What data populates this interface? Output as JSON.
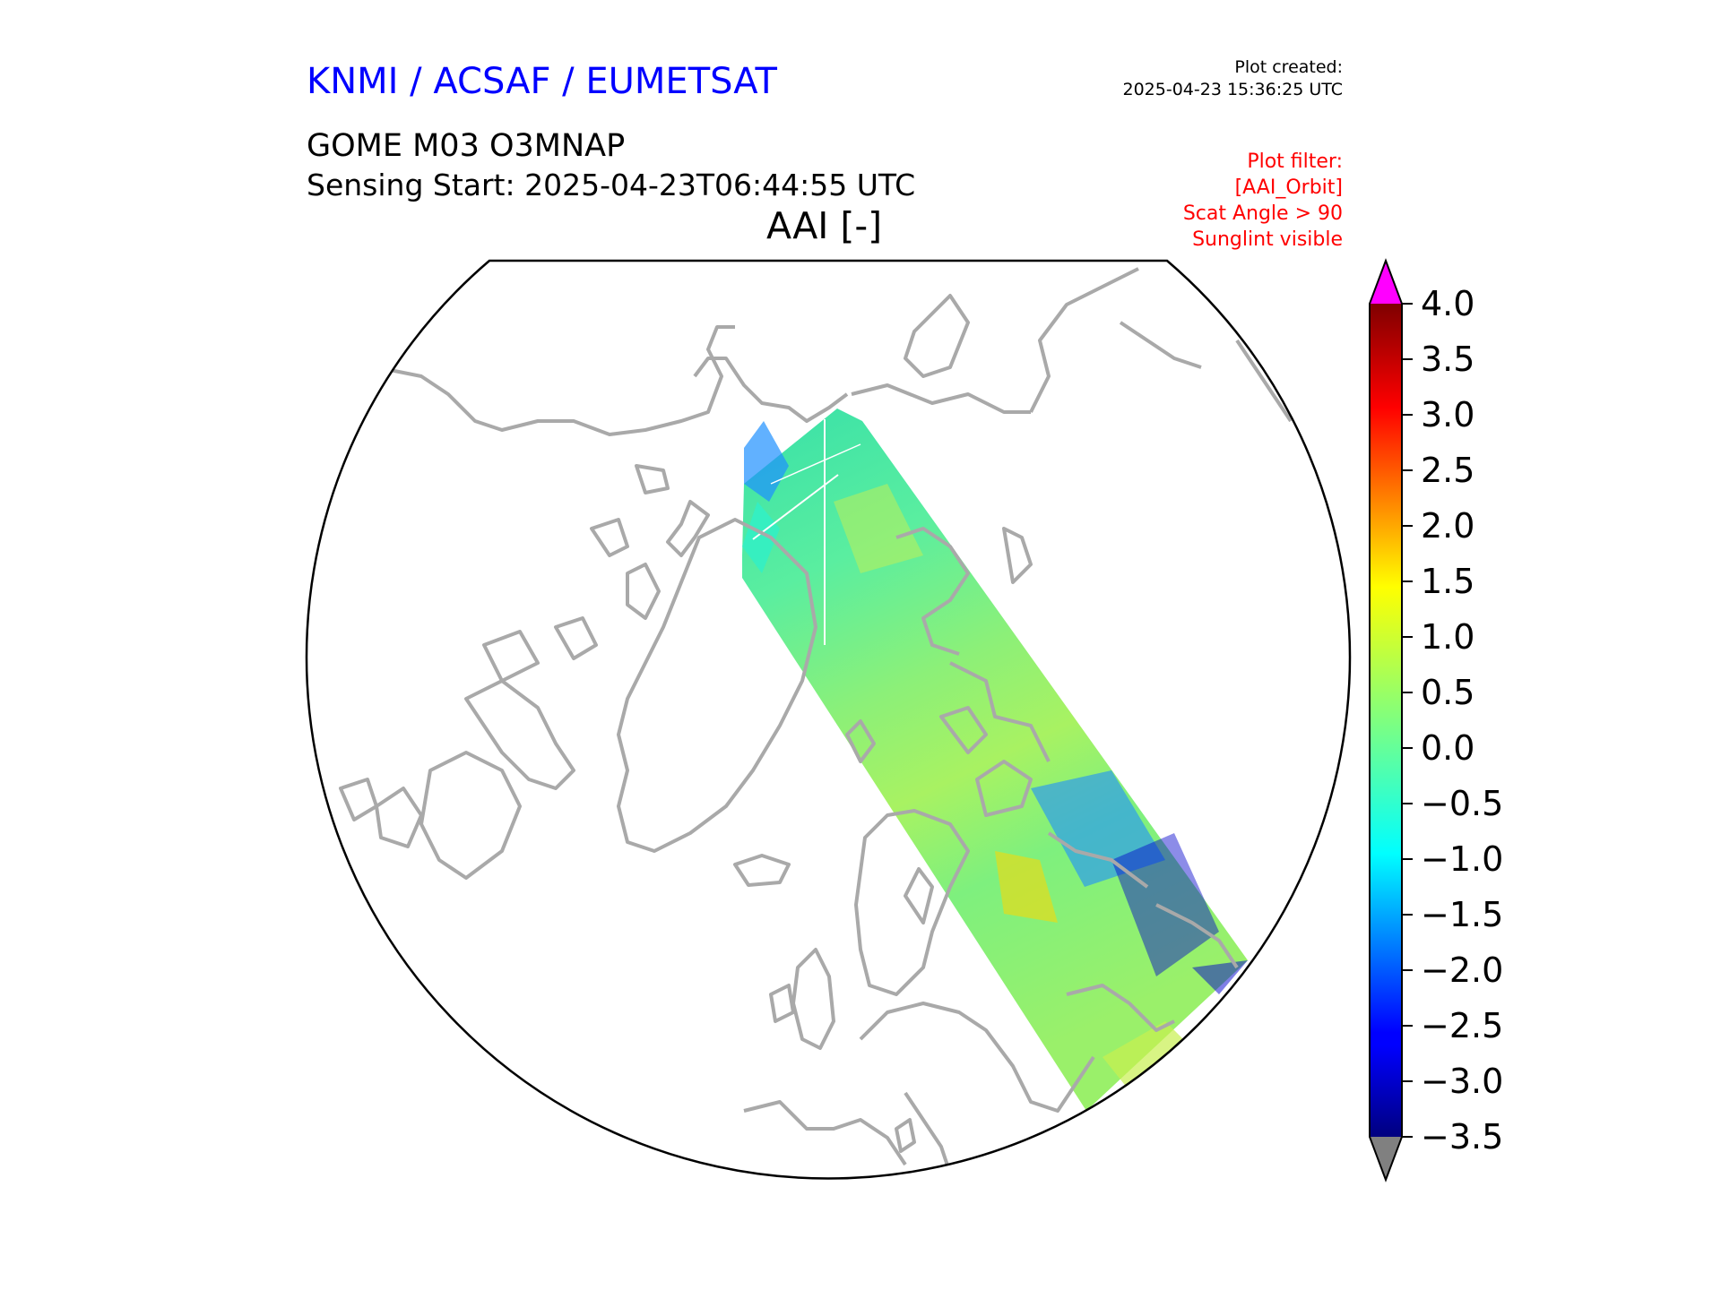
{
  "header": {
    "organization": "KNMI / ACSAF / EUMETSAT",
    "plot_created_label": "Plot created:",
    "plot_created_value": "2025-04-23 15:36:25 UTC",
    "product": "GOME M03 O3MNAP",
    "sensing_start": "Sensing Start: 2025-04-23T06:44:55 UTC",
    "variable_title": "AAI [-]"
  },
  "filter": {
    "label": "Plot filter:",
    "lines": [
      "[AAI_Orbit]",
      "Scat Angle > 90",
      "Sunglint visible"
    ]
  },
  "map": {
    "projection": "north-polar-stereographic",
    "coastline_color": "#a9a9a9",
    "swath_colors": [
      "#3fe89a",
      "#7ff07a",
      "#9ef26a",
      "#2ff0c8",
      "#c8f050",
      "#1e90ff",
      "#0000cd",
      "#ffd700"
    ]
  },
  "colorbar": {
    "min": -3.5,
    "max": 4.0,
    "tick_labels": [
      "4.0",
      "3.5",
      "3.0",
      "2.5",
      "2.0",
      "1.5",
      "1.0",
      "0.5",
      "0.0",
      "−0.5",
      "−1.0",
      "−1.5",
      "−2.0",
      "−2.5",
      "−3.0",
      "−3.5"
    ],
    "over_color": "#ff00ff",
    "under_color": "#808080",
    "colormap": "jet"
  }
}
